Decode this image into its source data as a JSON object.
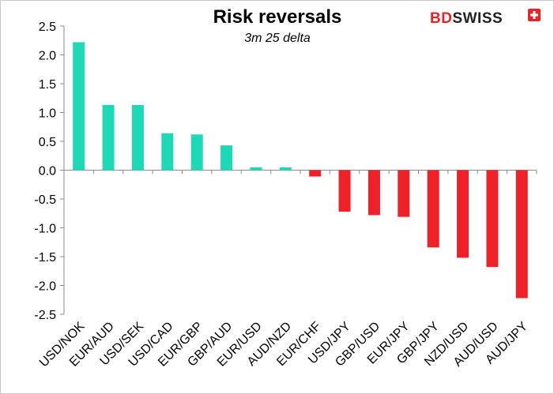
{
  "chart_data": {
    "type": "bar",
    "title": "Risk reversals",
    "subtitle": "3m 25 delta",
    "xlabel": "",
    "ylabel": "",
    "ylim": [
      -2.5,
      2.5
    ],
    "yticks": [
      "2.5",
      "2.0",
      "1.5",
      "1.0",
      "0.5",
      "0.0",
      "-0.5",
      "-1.0",
      "-1.5",
      "-2.0",
      "-2.5"
    ],
    "categories": [
      "USD/NOK",
      "EUR/AUD",
      "USD/SEK",
      "USD/CAD",
      "EUR/GBP",
      "GBP/AUD",
      "EUR/USD",
      "AUD/NZD",
      "EUR/CHF",
      "USD/JPY",
      "GBP/USD",
      "EUR/JPY",
      "GBP/JPY",
      "NZD/USD",
      "AUD/USD",
      "AUD/JPY"
    ],
    "values": [
      2.22,
      1.13,
      1.13,
      0.64,
      0.62,
      0.43,
      0.05,
      0.05,
      -0.11,
      -0.72,
      -0.78,
      -0.81,
      -1.34,
      -1.52,
      -1.68,
      -2.22
    ],
    "grid": false,
    "legend": "none",
    "colors": {
      "positive": "#1fd8b6",
      "negative": "#ee2128"
    }
  },
  "logo": {
    "text_bd": "BD",
    "text_swiss": "SWISS",
    "color_bd": "#e3242b",
    "color_swiss": "#222222"
  }
}
